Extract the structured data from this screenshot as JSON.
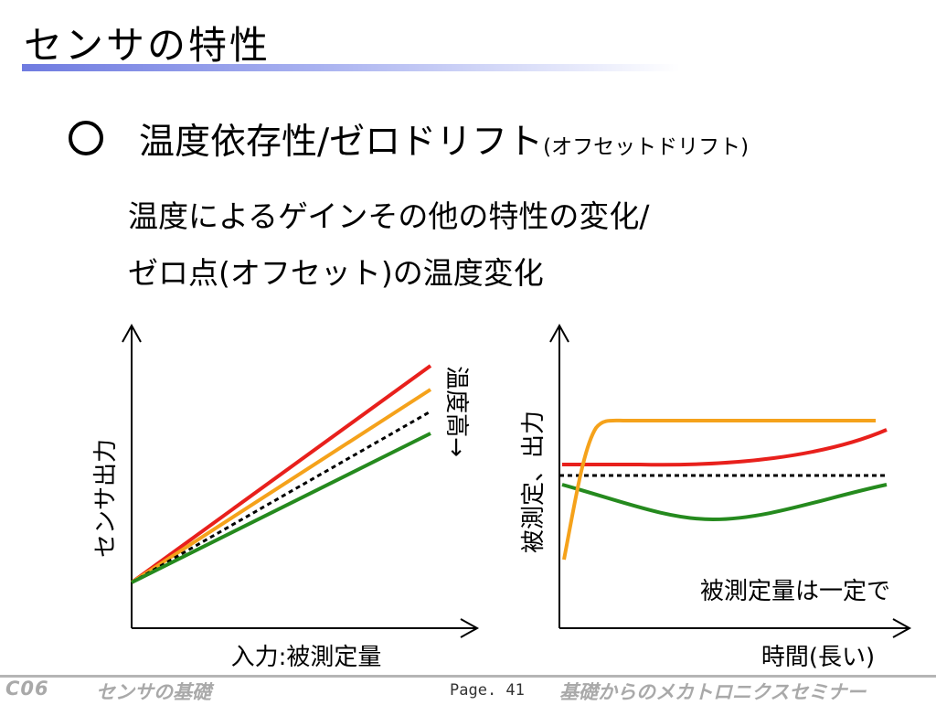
{
  "slide": {
    "title": "センサの特性",
    "heading": "温度依存性/ゼロドリフト",
    "heading_note": "(オフセットドリフト)",
    "body_lines": [
      "温度によるゲインその他の特性の変化/",
      "ゼロ点(オフセット)の温度変化"
    ]
  },
  "left_diagram": {
    "ylabel": "センサ出力",
    "xlabel": "入力:被測定量",
    "annotation": "温度高→",
    "series_colors": [
      "#e8201c",
      "#f5a21b",
      "#000000",
      "#258a1e"
    ]
  },
  "right_diagram": {
    "ylabel": "被測定、出力",
    "xlabel": "時間(長い)",
    "annotation": "被測定量は一定で",
    "series_colors": [
      "#f5a21b",
      "#e8201c",
      "#000000",
      "#258a1e"
    ]
  },
  "footer": {
    "code": "C06",
    "topic": "センサの基礎",
    "page": "Page. 41",
    "series": "基礎からのメカトロニクスセミナー"
  },
  "colors": {
    "title_rule": "#6f7be0",
    "footer_text": "#a9a9a9",
    "red": "#e8201c",
    "orange": "#f5a21b",
    "green": "#258a1e"
  }
}
